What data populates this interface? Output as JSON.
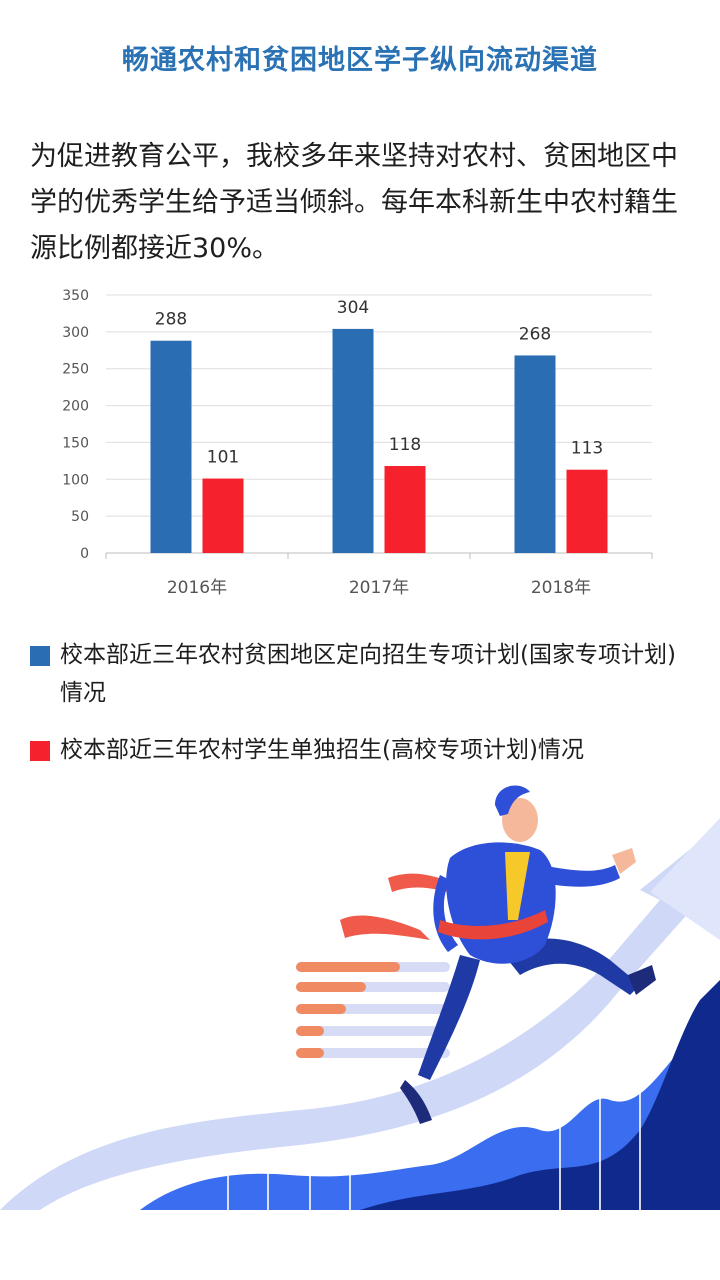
{
  "title": "畅通农村和贫困地区学子纵向流动渠道",
  "intro": "为促进教育公平，我校多年来坚持对农村、贫困地区中学的优秀学生给予适当倾斜。每年本科新生中农村籍生源比例都接近30%。",
  "chart_data": {
    "type": "bar",
    "categories": [
      "2016年",
      "2017年",
      "2018年"
    ],
    "series": [
      {
        "name": "校本部近三年农村贫困地区定向招生专项计划(国家专项计划) 情况",
        "values": [
          288,
          304,
          268
        ],
        "color": "#2b6db2"
      },
      {
        "name": "校本部近三年农村学生单独招生(高校专项计划)情况",
        "values": [
          101,
          118,
          113
        ],
        "color": "#f5222d"
      }
    ],
    "ylim": [
      0,
      350
    ],
    "yticks": [
      0,
      50,
      100,
      150,
      200,
      250,
      300,
      350
    ],
    "grid": true,
    "legend_position": "bottom",
    "xlabel": "",
    "ylabel": ""
  },
  "legend": [
    {
      "label": "校本部近三年农村贫困地区定向招生专项计划(国家专项计划) 情况",
      "color": "#2b6db2"
    },
    {
      "label": "校本部近三年农村学生单独招生(高校专项计划)情况",
      "color": "#f5222d"
    }
  ]
}
